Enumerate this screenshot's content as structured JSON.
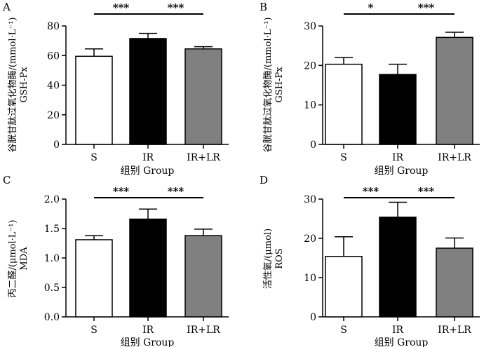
{
  "figure": {
    "panels": [
      {
        "letter": "A",
        "ylabel_line1": "谷胱甘肽过氧化物酶/(mmol·L⁻¹)",
        "ylabel_line2": "GSH-Px",
        "xlabel": "组别 Group"
      },
      {
        "letter": "B",
        "ylabel_line1": "谷胱甘肽过氧化物酶/(mmol·L⁻¹)",
        "ylabel_line2": "GSH-Px",
        "xlabel": "组别 Group"
      },
      {
        "letter": "C",
        "ylabel_line1": "丙二醛/(μmol·L⁻¹)",
        "ylabel_line2": "MDA",
        "xlabel": "组别 Group"
      },
      {
        "letter": "D",
        "ylabel_line1": "活性氧/(μmol)",
        "ylabel_line2": "ROS",
        "xlabel": "组别 Group"
      }
    ]
  },
  "chart_data": [
    {
      "type": "bar",
      "categories": [
        "S",
        "IR",
        "IR+LR"
      ],
      "values": [
        59.5,
        71.5,
        64.5
      ],
      "errors": [
        5,
        3.5,
        1.5
      ],
      "bar_colors": [
        "#ffffff",
        "#000000",
        "#808080"
      ],
      "ylim": [
        0,
        80
      ],
      "yticks": [
        0,
        20,
        40,
        60,
        80
      ],
      "ylabel": "谷胱甘肽过氧化物酶/(mmol·L⁻¹) GSH-Px",
      "xlabel": "组别 Group",
      "significance": [
        {
          "from": 0,
          "to": 1,
          "label": "***"
        },
        {
          "from": 1,
          "to": 2,
          "label": "***"
        }
      ]
    },
    {
      "type": "bar",
      "categories": [
        "S",
        "IR",
        "IR+LR"
      ],
      "values": [
        20.3,
        17.7,
        27.1
      ],
      "errors": [
        1.7,
        2.6,
        1.3
      ],
      "bar_colors": [
        "#ffffff",
        "#000000",
        "#808080"
      ],
      "ylim": [
        0,
        30
      ],
      "yticks": [
        0,
        10,
        20,
        30
      ],
      "ylabel": "谷胱甘肽过氧化物酶/(mmol·L⁻¹) GSH-Px",
      "xlabel": "组别 Group",
      "significance": [
        {
          "from": 0,
          "to": 1,
          "label": "*"
        },
        {
          "from": 1,
          "to": 2,
          "label": "***"
        }
      ]
    },
    {
      "type": "bar",
      "categories": [
        "S",
        "IR",
        "IR+LR"
      ],
      "values": [
        1.31,
        1.66,
        1.38
      ],
      "errors": [
        0.07,
        0.17,
        0.11
      ],
      "bar_colors": [
        "#ffffff",
        "#000000",
        "#808080"
      ],
      "ylim": [
        0,
        2.0
      ],
      "yticks": [
        "0.0",
        "0.5",
        "1.0",
        "1.5",
        "2.0"
      ],
      "ylabel": "丙二醛/(μmol·L⁻¹) MDA",
      "xlabel": "组别 Group",
      "significance": [
        {
          "from": 0,
          "to": 1,
          "label": "***"
        },
        {
          "from": 1,
          "to": 2,
          "label": "***"
        }
      ]
    },
    {
      "type": "bar",
      "categories": [
        "S",
        "IR",
        "IR+LR"
      ],
      "values": [
        15.4,
        25.4,
        17.5
      ],
      "errors": [
        5.0,
        3.8,
        2.6
      ],
      "bar_colors": [
        "#ffffff",
        "#000000",
        "#808080"
      ],
      "ylim": [
        0,
        30
      ],
      "yticks": [
        0,
        10,
        20,
        30
      ],
      "ylabel": "活性氧/(μmol) ROS",
      "xlabel": "组别 Group",
      "significance": [
        {
          "from": 0,
          "to": 1,
          "label": "***"
        },
        {
          "from": 1,
          "to": 2,
          "label": "***"
        }
      ]
    }
  ]
}
